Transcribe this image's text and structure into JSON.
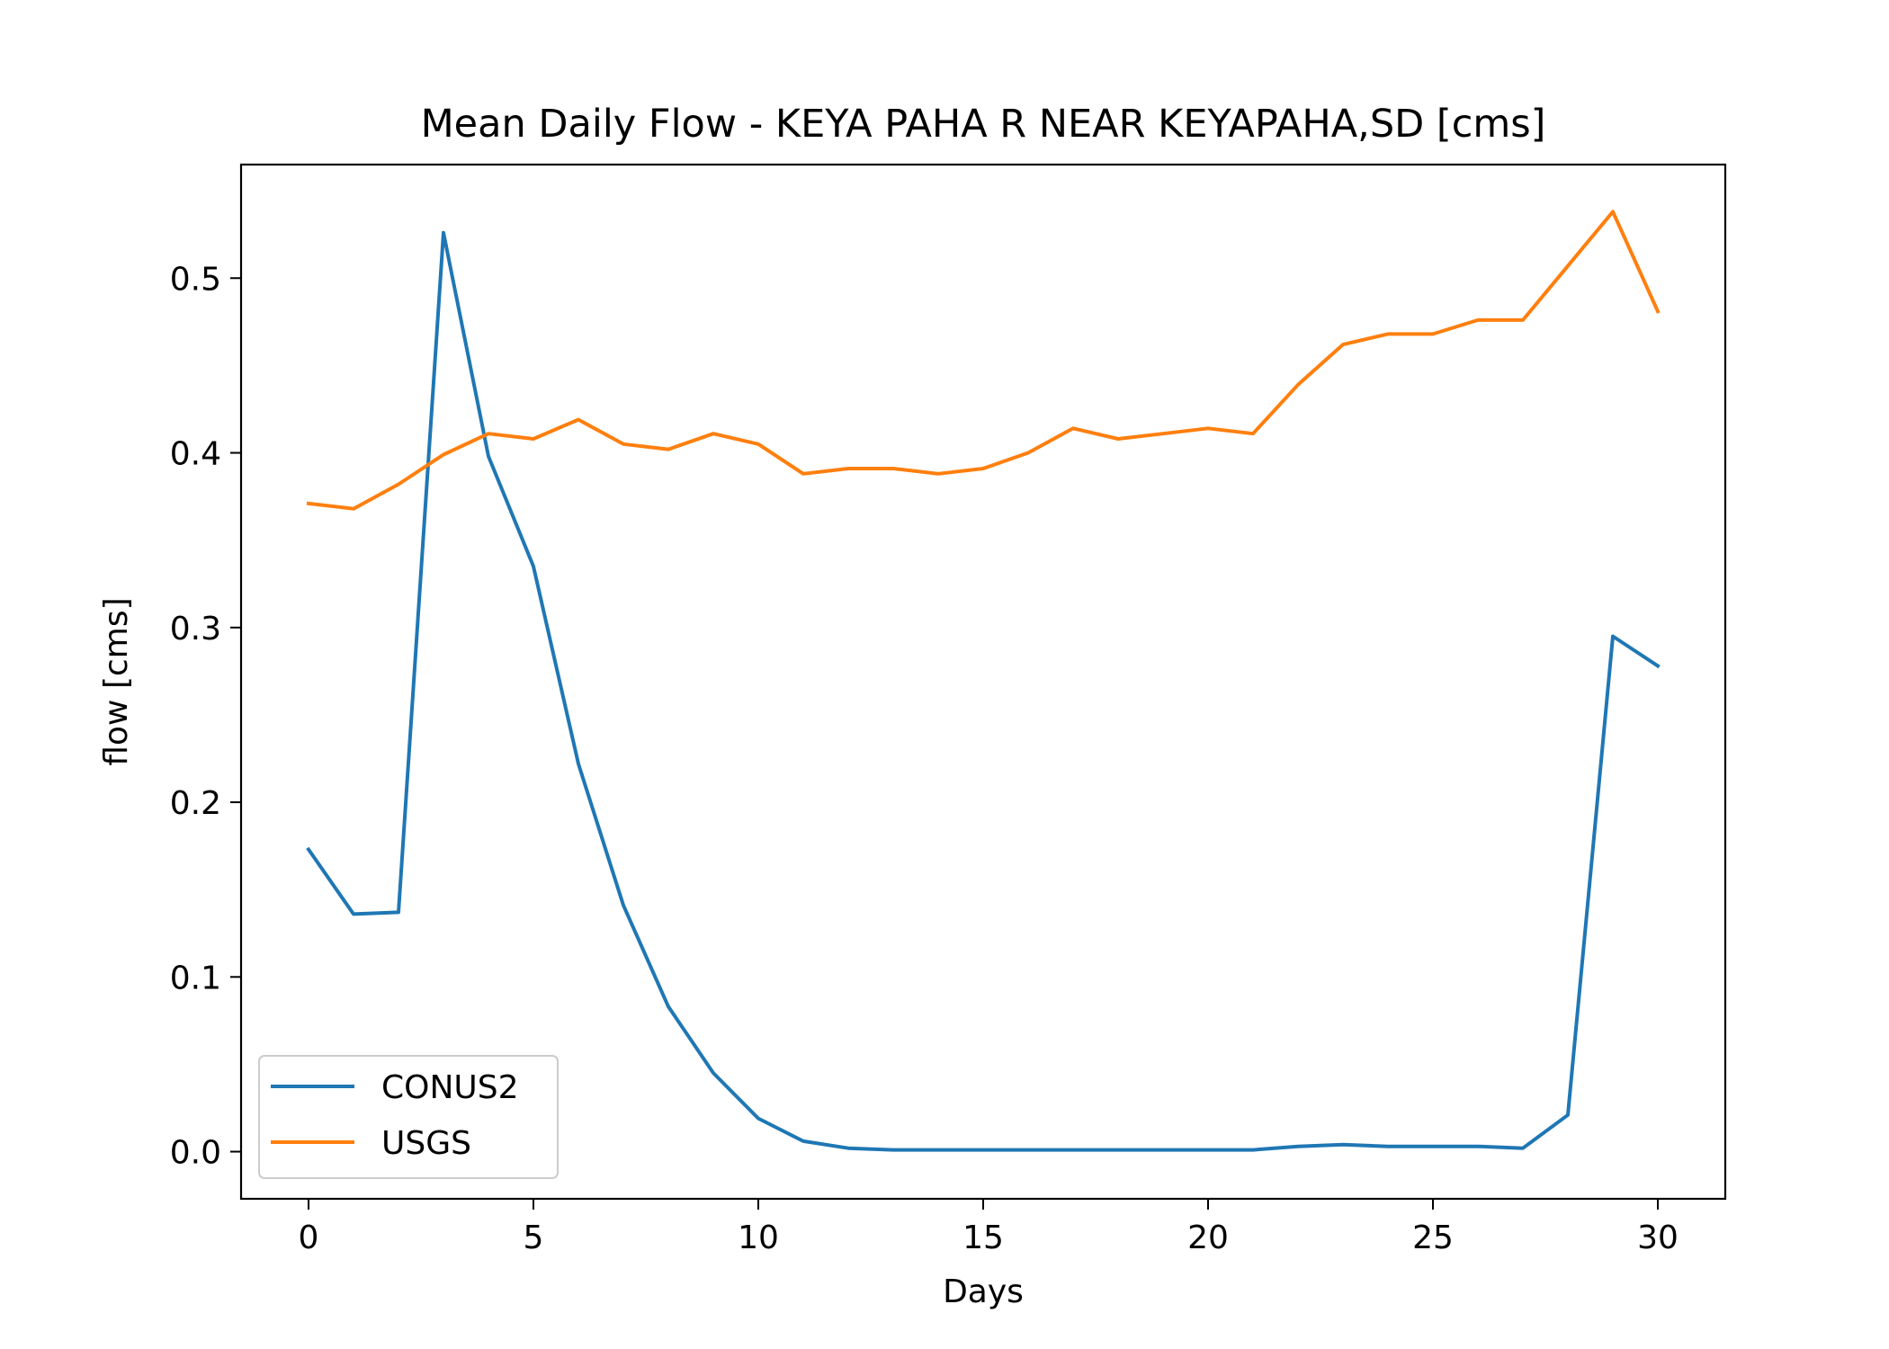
{
  "chart_data": {
    "type": "line",
    "title": "Mean Daily Flow - KEYA PAHA R NEAR KEYAPAHA,SD [cms]",
    "xlabel": "Days",
    "ylabel": "flow [cms]",
    "xlim": [
      -1.5,
      31.5
    ],
    "ylim": [
      -0.027,
      0.565
    ],
    "xticks": [
      0,
      5,
      10,
      15,
      20,
      25,
      30
    ],
    "xtick_labels": [
      "0",
      "5",
      "10",
      "15",
      "20",
      "25",
      "30"
    ],
    "yticks": [
      0.0,
      0.1,
      0.2,
      0.3,
      0.4,
      0.5
    ],
    "ytick_labels": [
      "0.0",
      "0.1",
      "0.2",
      "0.3",
      "0.4",
      "0.5"
    ],
    "grid": false,
    "legend_position": "lower-left",
    "x": [
      0,
      1,
      2,
      3,
      4,
      5,
      6,
      7,
      8,
      9,
      10,
      11,
      12,
      13,
      14,
      15,
      16,
      17,
      18,
      19,
      20,
      21,
      22,
      23,
      24,
      25,
      26,
      27,
      28,
      29,
      30
    ],
    "series": [
      {
        "name": "CONUS2",
        "color": "#1f77b4",
        "values": [
          0.173,
          0.136,
          0.137,
          0.526,
          0.398,
          0.335,
          0.222,
          0.141,
          0.083,
          0.045,
          0.019,
          0.006,
          0.002,
          0.001,
          0.001,
          0.001,
          0.001,
          0.001,
          0.001,
          0.001,
          0.001,
          0.001,
          0.003,
          0.004,
          0.003,
          0.003,
          0.003,
          0.002,
          0.021,
          0.295,
          0.278
        ]
      },
      {
        "name": "USGS",
        "color": "#ff7f0e",
        "values": [
          0.371,
          0.368,
          0.382,
          0.399,
          0.411,
          0.408,
          0.419,
          0.405,
          0.402,
          0.411,
          0.405,
          0.388,
          0.391,
          0.391,
          0.388,
          0.391,
          0.4,
          0.414,
          0.408,
          0.411,
          0.414,
          0.411,
          0.439,
          0.462,
          0.468,
          0.468,
          0.476,
          0.476,
          0.507,
          0.538,
          0.481
        ]
      }
    ]
  }
}
